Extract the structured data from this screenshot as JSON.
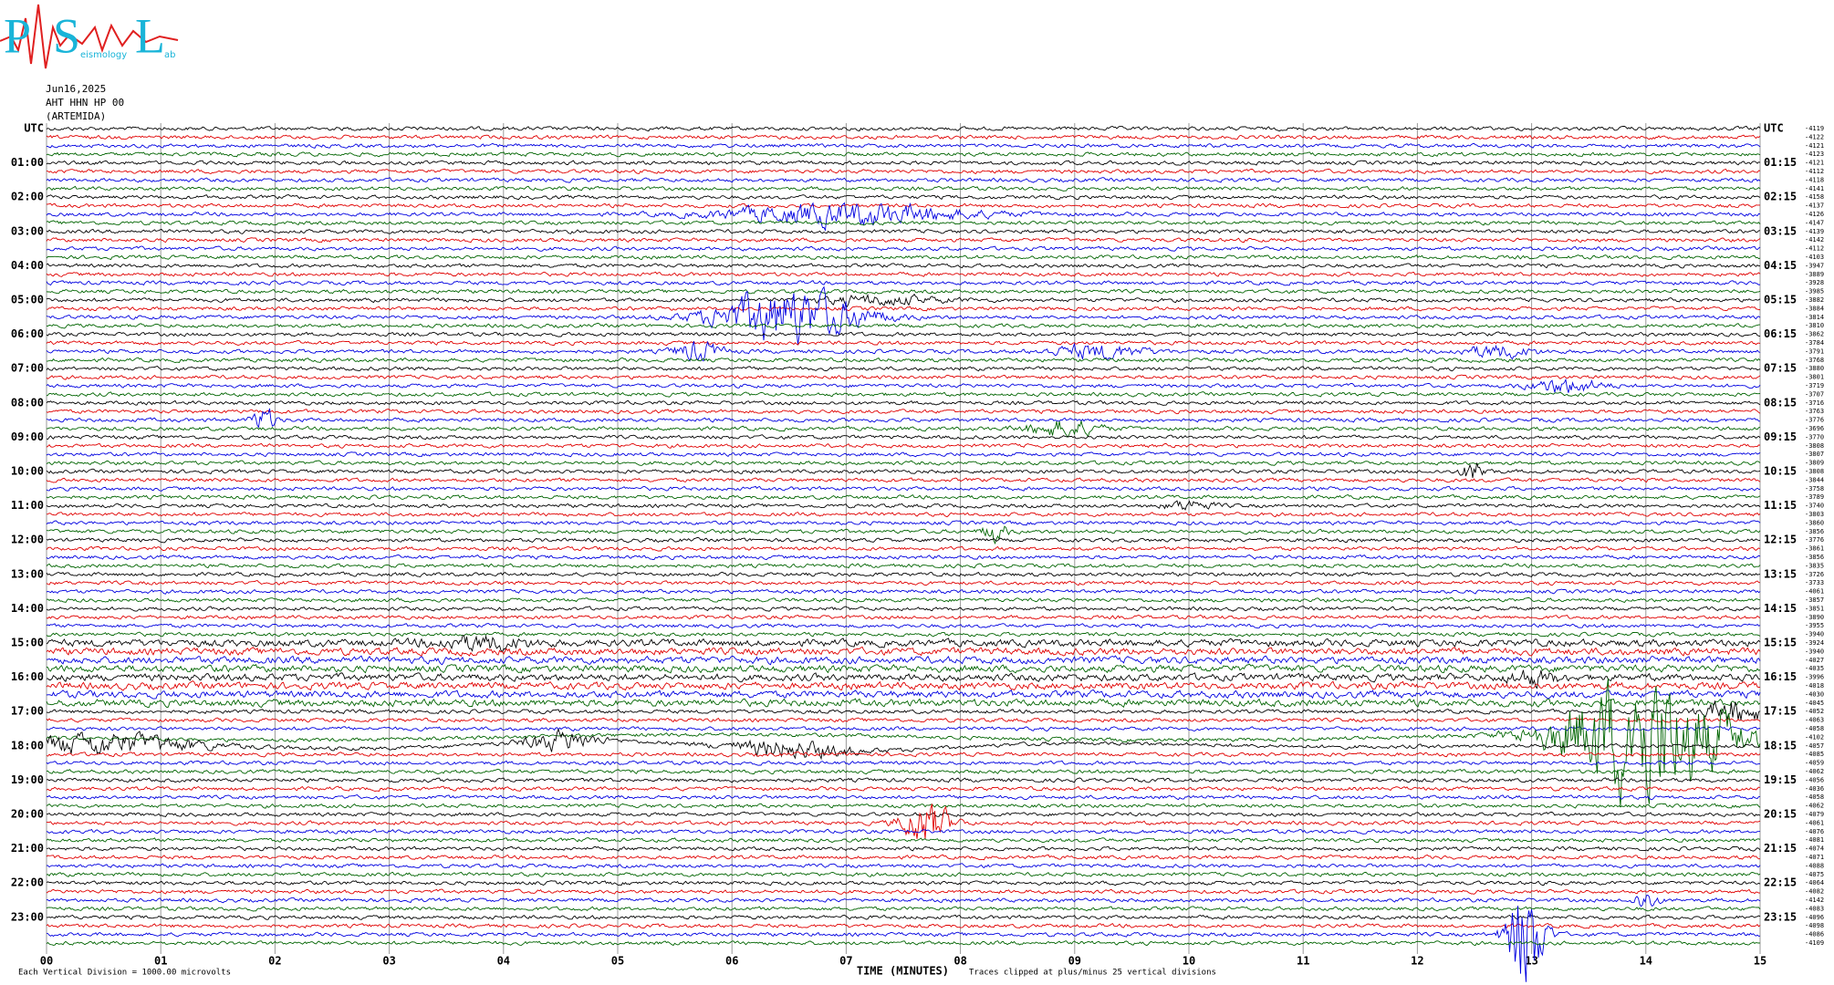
{
  "logo": {
    "letters": [
      "P",
      "S",
      "L"
    ],
    "small": [
      "eismology",
      "ab"
    ]
  },
  "header": [
    "Jun16,2025",
    "AHT HHN HP 00",
    "(ARTEMIDA)"
  ],
  "left_labels": [
    "UTC",
    "01:00",
    "02:00",
    "03:00",
    "04:00",
    "05:00",
    "06:00",
    "07:00",
    "08:00",
    "09:00",
    "10:00",
    "11:00",
    "12:00",
    "13:00",
    "14:00",
    "15:00",
    "16:00",
    "17:00",
    "18:00",
    "19:00",
    "20:00",
    "21:00",
    "22:00",
    "23:00"
  ],
  "right_labels": [
    "UTC",
    "01:15",
    "02:15",
    "03:15",
    "04:15",
    "05:15",
    "06:15",
    "07:15",
    "08:15",
    "09:15",
    "10:15",
    "11:15",
    "12:15",
    "13:15",
    "14:15",
    "15:15",
    "16:15",
    "17:15",
    "18:15",
    "19:15",
    "20:15",
    "21:15",
    "22:15",
    "23:15"
  ],
  "offsets": [
    "-4119",
    "-4122",
    "-4121",
    "-4123",
    "-4121",
    "-4112",
    "-4118",
    "-4141",
    "-4158",
    "-4137",
    "-4126",
    "-4147",
    "-4139",
    "-4142",
    "-4112",
    "-4103",
    "-3947",
    "-3889",
    "-3928",
    "-3985",
    "-3882",
    "-3884",
    "-3814",
    "-3810",
    "-3862",
    "-3784",
    "-3791",
    "-3768",
    "-3880",
    "-3801",
    "-3719",
    "-3707",
    "-3716",
    "-3763",
    "-3776",
    "-3696",
    "-3770",
    "-3808",
    "-3807",
    "-3809",
    "-3808",
    "-3844",
    "-3758",
    "-3789",
    "-3740",
    "-3803",
    "-3860",
    "-3856",
    "-3776",
    "-3861",
    "-3856",
    "-3835",
    "-3726",
    "-3733",
    "-4061",
    "-3857",
    "-3851",
    "-3890",
    "-3955",
    "-3940",
    "-3924",
    "-3940",
    "-4027",
    "-4035",
    "-3996",
    "-4018",
    "-4030",
    "-4045",
    "-4052",
    "-4063",
    "-4058",
    "-4102",
    "-4057",
    "-4085",
    "-4059",
    "-4062",
    "-4056",
    "-4036",
    "-4058",
    "-4062",
    "-4079",
    "-4061",
    "-4076",
    "-4081",
    "-4074",
    "-4071",
    "-4088",
    "-4075",
    "-4064",
    "-4082",
    "-4142",
    "-4083",
    "-4096",
    "-4098",
    "-4086",
    "-4109"
  ],
  "x_labels": [
    "00",
    "01",
    "02",
    "03",
    "04",
    "05",
    "06",
    "07",
    "08",
    "09",
    "10",
    "11",
    "12",
    "13",
    "14",
    "15"
  ],
  "footer": {
    "scale": "Each Vertical Division = 1000.00 microvolts",
    "axis": "TIME (MINUTES)",
    "clip": "Traces clipped at plus/minus 25 vertical divisions"
  }
}
